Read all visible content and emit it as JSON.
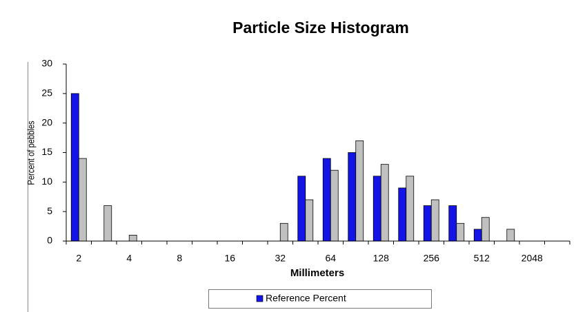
{
  "chart_data": {
    "type": "bar",
    "title": "Particle Size Histogram",
    "x_label": "Millimeters",
    "y_label": "Percent of pebbles",
    "categories": [
      "2",
      null,
      "4",
      null,
      "8",
      null,
      "16",
      null,
      "32",
      null,
      "64",
      null,
      "128",
      null,
      "256",
      null,
      "512",
      null,
      "2048",
      null
    ],
    "series": [
      {
        "name": "Reference Percent",
        "color": "#1414e6",
        "values": [
          25,
          0,
          0,
          0,
          0,
          0,
          0,
          0,
          0,
          11,
          14,
          15,
          11,
          9,
          6,
          6,
          2,
          0,
          0,
          0
        ]
      },
      {
        "color": "#c0c0c0",
        "values": [
          14,
          6,
          1,
          0,
          0,
          0,
          0,
          0,
          3,
          7,
          12,
          17,
          13,
          11,
          7,
          3,
          4,
          2,
          0,
          0
        ]
      }
    ],
    "ylim": [
      0,
      30
    ],
    "yticks": [
      0,
      5,
      10,
      15,
      20,
      25,
      30
    ],
    "grid": false,
    "legend": "bottom"
  }
}
